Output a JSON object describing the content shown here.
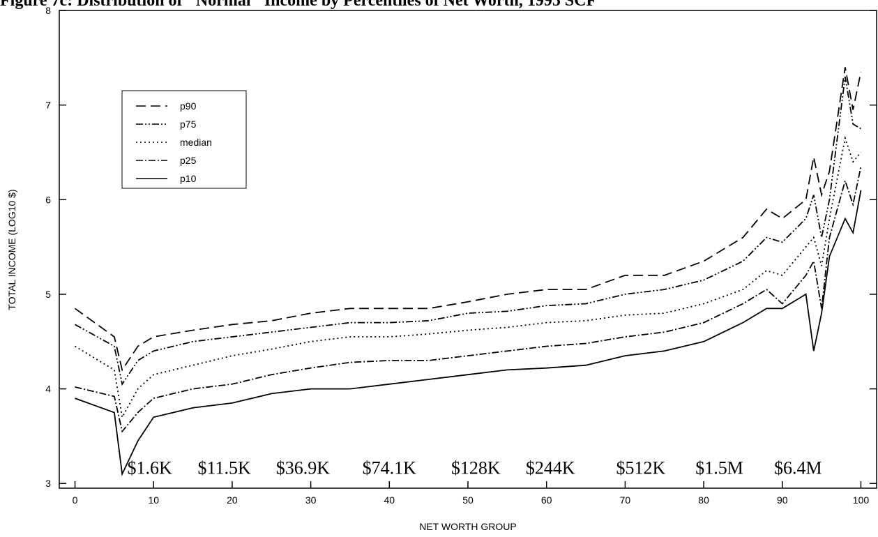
{
  "chart_data": {
    "type": "line",
    "title": "Figure 7c: Distribution of \"Normal\" Income by Percentiles of Net Worth, 1995 SCF",
    "xlabel": "NET WORTH GROUP",
    "ylabel": "TOTAL INCOME (LOG10 $)",
    "xlim": [
      -2,
      102
    ],
    "ylim": [
      2.95,
      8.0
    ],
    "x_ticks": [
      0,
      10,
      20,
      30,
      40,
      50,
      60,
      70,
      80,
      90,
      100
    ],
    "y_ticks": [
      3,
      4,
      5,
      6,
      7,
      8
    ],
    "legend_position": "upper-left",
    "x": [
      0,
      5,
      6,
      8,
      10,
      15,
      20,
      25,
      30,
      35,
      40,
      45,
      50,
      55,
      60,
      65,
      70,
      75,
      80,
      85,
      88,
      90,
      93,
      94,
      95,
      96,
      98,
      99,
      100
    ],
    "series": [
      {
        "name": "p90",
        "dash": "14,7",
        "values": [
          4.85,
          4.55,
          4.2,
          4.45,
          4.55,
          4.62,
          4.68,
          4.72,
          4.8,
          4.85,
          4.85,
          4.85,
          4.92,
          5.0,
          5.05,
          5.05,
          5.2,
          5.2,
          5.35,
          5.6,
          5.9,
          5.8,
          6.0,
          6.45,
          6.05,
          6.3,
          7.4,
          6.95,
          7.35
        ]
      },
      {
        "name": "p75",
        "dash": "10,3,2,3,2,3",
        "values": [
          4.68,
          4.45,
          4.05,
          4.3,
          4.4,
          4.5,
          4.55,
          4.6,
          4.65,
          4.7,
          4.7,
          4.72,
          4.8,
          4.82,
          4.88,
          4.9,
          5.0,
          5.05,
          5.15,
          5.35,
          5.6,
          5.55,
          5.8,
          6.05,
          5.6,
          6.0,
          7.3,
          6.8,
          6.75
        ]
      },
      {
        "name": "median",
        "dash": "2,4",
        "values": [
          4.45,
          4.2,
          3.7,
          4.0,
          4.15,
          4.25,
          4.35,
          4.42,
          4.5,
          4.55,
          4.55,
          4.58,
          4.62,
          4.65,
          4.7,
          4.72,
          4.78,
          4.8,
          4.9,
          5.05,
          5.25,
          5.2,
          5.5,
          5.6,
          5.3,
          5.8,
          6.65,
          6.4,
          6.5
        ]
      },
      {
        "name": "p25",
        "dash": "10,3,2,3",
        "values": [
          4.02,
          3.92,
          3.55,
          3.75,
          3.9,
          4.0,
          4.05,
          4.15,
          4.22,
          4.28,
          4.3,
          4.3,
          4.35,
          4.4,
          4.45,
          4.48,
          4.55,
          4.6,
          4.7,
          4.9,
          5.05,
          4.9,
          5.2,
          5.35,
          4.85,
          5.6,
          6.2,
          5.95,
          6.35
        ]
      },
      {
        "name": "p10",
        "dash": "",
        "values": [
          3.9,
          3.75,
          3.1,
          3.45,
          3.7,
          3.8,
          3.85,
          3.95,
          4.0,
          4.0,
          4.05,
          4.1,
          4.15,
          4.2,
          4.22,
          4.25,
          4.35,
          4.4,
          4.5,
          4.7,
          4.85,
          4.85,
          5.0,
          4.4,
          4.8,
          5.4,
          5.8,
          5.65,
          6.1
        ]
      }
    ],
    "annotations": [
      {
        "text": "$1.6K",
        "x": 9.5,
        "y": 3.1
      },
      {
        "text": "$11.5K",
        "x": 19,
        "y": 3.1
      },
      {
        "text": "$36.9K",
        "x": 29,
        "y": 3.1
      },
      {
        "text": "$74.1K",
        "x": 40,
        "y": 3.1
      },
      {
        "text": "$128K",
        "x": 51,
        "y": 3.1
      },
      {
        "text": "$244K",
        "x": 60.5,
        "y": 3.1
      },
      {
        "text": "$512K",
        "x": 72,
        "y": 3.1
      },
      {
        "text": "$1.5M",
        "x": 82,
        "y": 3.1
      },
      {
        "text": "$6.4M",
        "x": 92,
        "y": 3.1
      }
    ]
  }
}
